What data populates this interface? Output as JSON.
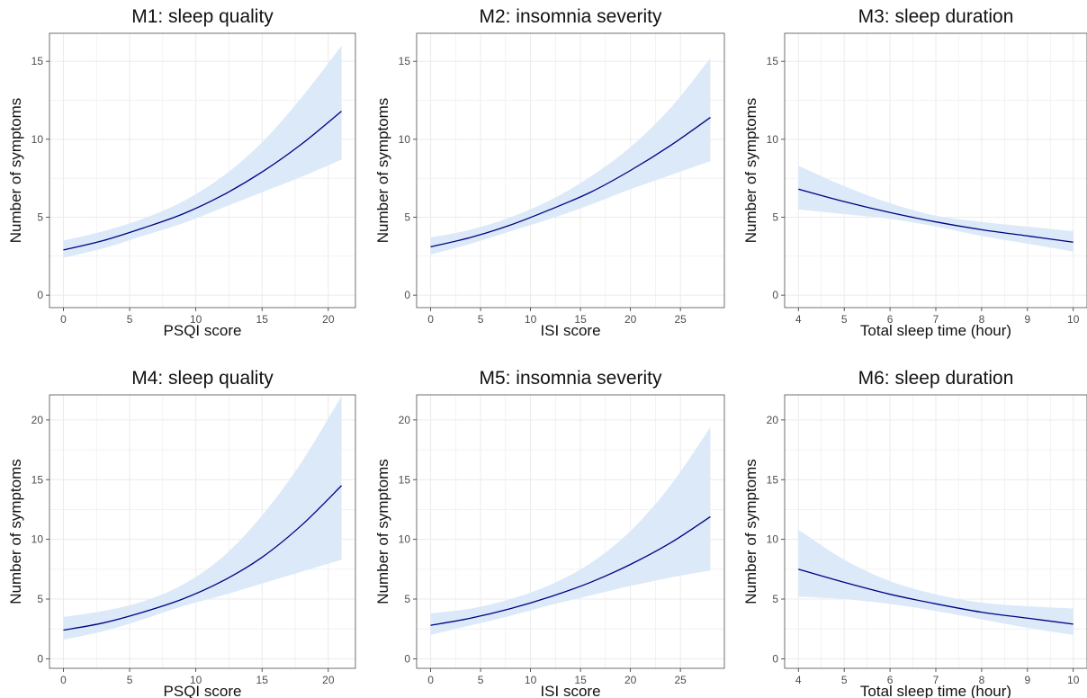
{
  "figure": {
    "panels_count": 6
  },
  "chart_data": [
    {
      "type": "line",
      "title": "M1: sleep quality",
      "xlabel": "PSQI score",
      "ylabel": "Number of symptoms",
      "xlim": [
        -1.05,
        22.05
      ],
      "ylim": [
        -0.8,
        16.8
      ],
      "xticks": [
        0,
        5,
        10,
        15,
        20
      ],
      "yticks": [
        0,
        5,
        10,
        15
      ],
      "grid": true,
      "band": true,
      "x": [
        0,
        3,
        6,
        9,
        12,
        15,
        18,
        21
      ],
      "y": [
        2.9,
        3.5,
        4.3,
        5.2,
        6.4,
        7.9,
        9.7,
        11.8
      ],
      "lower": [
        2.4,
        3.0,
        3.8,
        4.6,
        5.6,
        6.6,
        7.6,
        8.7
      ],
      "upper": [
        3.5,
        4.1,
        4.9,
        6.0,
        7.6,
        9.8,
        12.7,
        16.0
      ]
    },
    {
      "type": "line",
      "title": "M2: insomnia severity",
      "xlabel": "ISI score",
      "ylabel": "Number of symptoms",
      "xlim": [
        -1.4,
        29.4
      ],
      "ylim": [
        -0.8,
        16.8
      ],
      "xticks": [
        0,
        5,
        10,
        15,
        20,
        25
      ],
      "yticks": [
        0,
        5,
        10,
        15
      ],
      "grid": true,
      "band": true,
      "x": [
        0,
        4,
        8,
        12,
        16,
        20,
        24,
        28
      ],
      "y": [
        3.1,
        3.7,
        4.5,
        5.5,
        6.6,
        8.0,
        9.6,
        11.4
      ],
      "lower": [
        2.6,
        3.3,
        4.1,
        4.9,
        5.8,
        6.8,
        7.7,
        8.6
      ],
      "upper": [
        3.7,
        4.2,
        5.0,
        6.1,
        7.6,
        9.5,
        12.0,
        15.2
      ]
    },
    {
      "type": "line",
      "title": "M3: sleep duration",
      "xlabel": "Total sleep time (hour)",
      "ylabel": "Number of symptoms",
      "xlim": [
        3.7,
        10.3
      ],
      "ylim": [
        -0.8,
        16.8
      ],
      "xticks": [
        4,
        5,
        6,
        7,
        8,
        9,
        10
      ],
      "yticks": [
        0,
        5,
        10,
        15
      ],
      "grid": true,
      "band": true,
      "x": [
        4,
        5,
        6,
        7,
        8,
        9,
        10
      ],
      "y": [
        6.8,
        6.0,
        5.3,
        4.7,
        4.2,
        3.8,
        3.4
      ],
      "lower": [
        5.5,
        5.2,
        4.9,
        4.4,
        3.8,
        3.3,
        2.8
      ],
      "upper": [
        8.3,
        7.0,
        5.9,
        5.1,
        4.7,
        4.4,
        4.1
      ]
    },
    {
      "type": "line",
      "title": "M4: sleep quality",
      "xlabel": "PSQI score",
      "ylabel": "Number of symptoms",
      "xlim": [
        -1.05,
        22.05
      ],
      "ylim": [
        -0.8,
        22.1
      ],
      "xticks": [
        0,
        5,
        10,
        15,
        20
      ],
      "yticks": [
        0,
        5,
        10,
        15,
        20
      ],
      "grid": true,
      "band": true,
      "x": [
        0,
        3,
        6,
        9,
        12,
        15,
        18,
        21
      ],
      "y": [
        2.4,
        3.0,
        3.9,
        5.0,
        6.5,
        8.5,
        11.2,
        14.5
      ],
      "lower": [
        1.6,
        2.3,
        3.3,
        4.4,
        5.3,
        6.3,
        7.3,
        8.3
      ],
      "upper": [
        3.5,
        4.0,
        4.8,
        6.2,
        8.5,
        12.0,
        16.5,
        22.0
      ]
    },
    {
      "type": "line",
      "title": "M5: insomnia severity",
      "xlabel": "ISI score",
      "ylabel": "Number of symptoms",
      "xlim": [
        -1.4,
        29.4
      ],
      "ylim": [
        -0.8,
        22.1
      ],
      "xticks": [
        0,
        5,
        10,
        15,
        20,
        25
      ],
      "yticks": [
        0,
        5,
        10,
        15,
        20
      ],
      "grid": true,
      "band": true,
      "x": [
        0,
        4,
        8,
        12,
        16,
        20,
        24,
        28
      ],
      "y": [
        2.8,
        3.4,
        4.2,
        5.2,
        6.4,
        7.9,
        9.7,
        11.9
      ],
      "lower": [
        2.0,
        2.8,
        3.6,
        4.5,
        5.3,
        6.1,
        6.8,
        7.4
      ],
      "upper": [
        3.8,
        4.2,
        5.0,
        6.2,
        8.0,
        10.7,
        14.5,
        19.4
      ]
    },
    {
      "type": "line",
      "title": "M6: sleep duration",
      "xlabel": "Total sleep time (hour)",
      "ylabel": "Number of symptoms",
      "xlim": [
        3.7,
        10.3
      ],
      "ylim": [
        -0.8,
        22.1
      ],
      "xticks": [
        4,
        5,
        6,
        7,
        8,
        9,
        10
      ],
      "yticks": [
        0,
        5,
        10,
        15,
        20
      ],
      "grid": true,
      "band": true,
      "x": [
        4,
        5,
        6,
        7,
        8,
        9,
        10
      ],
      "y": [
        7.5,
        6.4,
        5.4,
        4.6,
        3.9,
        3.4,
        2.9
      ],
      "lower": [
        5.2,
        5.0,
        4.6,
        4.0,
        3.3,
        2.6,
        2.0
      ],
      "upper": [
        10.8,
        8.3,
        6.5,
        5.4,
        4.7,
        4.4,
        4.2
      ]
    }
  ],
  "colors": {
    "line": "#000080",
    "band": "#dbe9f9",
    "grid": "#ebebeb",
    "axis_frame": "#4d4d4d"
  }
}
